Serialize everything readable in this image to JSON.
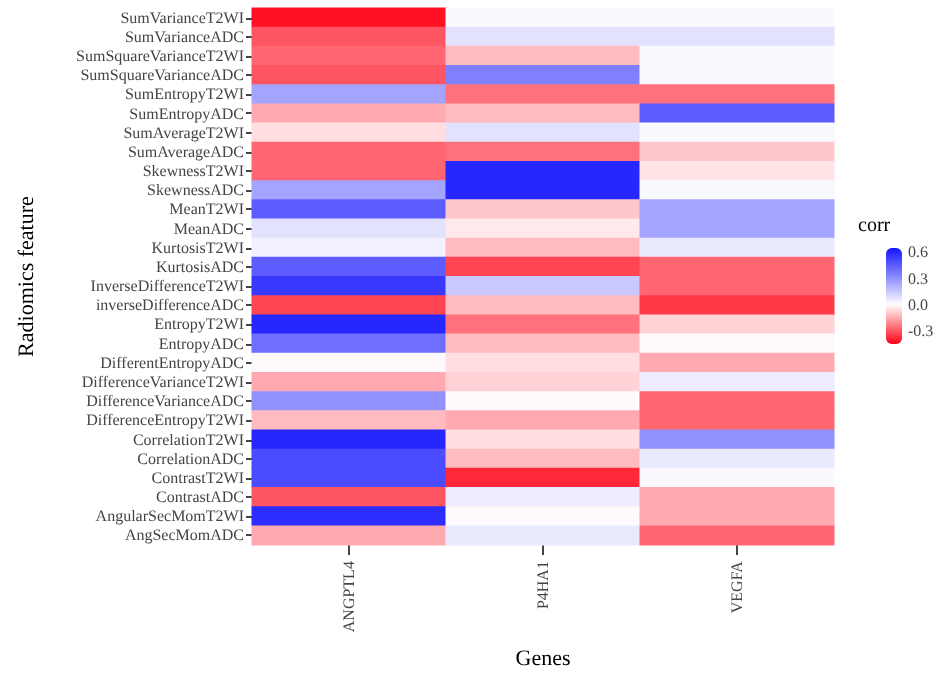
{
  "chart_data": {
    "type": "heatmap",
    "xlabel": "Genes",
    "ylabel": "Radiomics feature",
    "clabel": "corr",
    "categories": [
      "ANGPTL4",
      "P4HA1",
      "VEGFA"
    ],
    "y_categories": [
      "SumVarianceT2WI",
      "SumVarianceADC",
      "SumSquareVarianceT2WI",
      "SumSquareVarianceADC",
      "SumEntropyT2WI",
      "SumEntropyADC",
      "SumAverageT2WI",
      "SumAverageADC",
      "SkewnessT2WI",
      "SkewnessADC",
      "MeanT2WI",
      "MeanADC",
      "KurtosisT2WI",
      "KurtosisADC",
      "InverseDifferenceT2WI",
      "inverseDifferenceADC",
      "EntropyT2WI",
      "EntropyADC",
      "DifferentEntropyADC",
      "DifferenceVarianceT2WI",
      "DifferenceVarianceADC",
      "DifferenceEntropyT2WI",
      "CorrelationT2WI",
      "CorrelationADC",
      "ContrastT2WI",
      "ContrastADC",
      "AngularSecMomT2WI",
      "AngSecMomADC"
    ],
    "cells": [
      [
        -0.42,
        0.01,
        0.01
      ],
      [
        -0.3,
        0.08,
        0.08
      ],
      [
        -0.27,
        -0.12,
        0.01
      ],
      [
        -0.3,
        0.35,
        0.01
      ],
      [
        0.25,
        -0.25,
        -0.25
      ],
      [
        -0.15,
        -0.12,
        0.45
      ],
      [
        -0.06,
        0.08,
        0.02
      ],
      [
        -0.27,
        -0.25,
        -0.1
      ],
      [
        -0.27,
        0.6,
        -0.05
      ],
      [
        0.25,
        0.6,
        0.02
      ],
      [
        0.45,
        -0.1,
        0.25
      ],
      [
        0.08,
        -0.04,
        0.25
      ],
      [
        0.04,
        -0.12,
        0.06
      ],
      [
        0.45,
        -0.33,
        -0.27
      ],
      [
        0.55,
        0.15,
        -0.27
      ],
      [
        -0.33,
        -0.12,
        -0.35
      ],
      [
        0.6,
        -0.25,
        -0.08
      ],
      [
        0.4,
        -0.12,
        0.0
      ],
      [
        0.0,
        -0.06,
        -0.15
      ],
      [
        -0.15,
        -0.08,
        0.05
      ],
      [
        0.3,
        0.0,
        -0.27
      ],
      [
        -0.12,
        -0.15,
        -0.27
      ],
      [
        0.6,
        -0.06,
        0.3
      ],
      [
        0.5,
        -0.12,
        0.06
      ],
      [
        0.5,
        -0.38,
        0.01
      ],
      [
        -0.3,
        0.05,
        -0.15
      ],
      [
        0.58,
        0.0,
        -0.15
      ],
      [
        -0.15,
        0.06,
        -0.27
      ]
    ],
    "clim": [
      -0.45,
      0.65
    ],
    "cticks": [
      -0.3,
      {
        "value": 0,
        "label": "0.0"
      },
      0.3,
      0.6
    ]
  }
}
